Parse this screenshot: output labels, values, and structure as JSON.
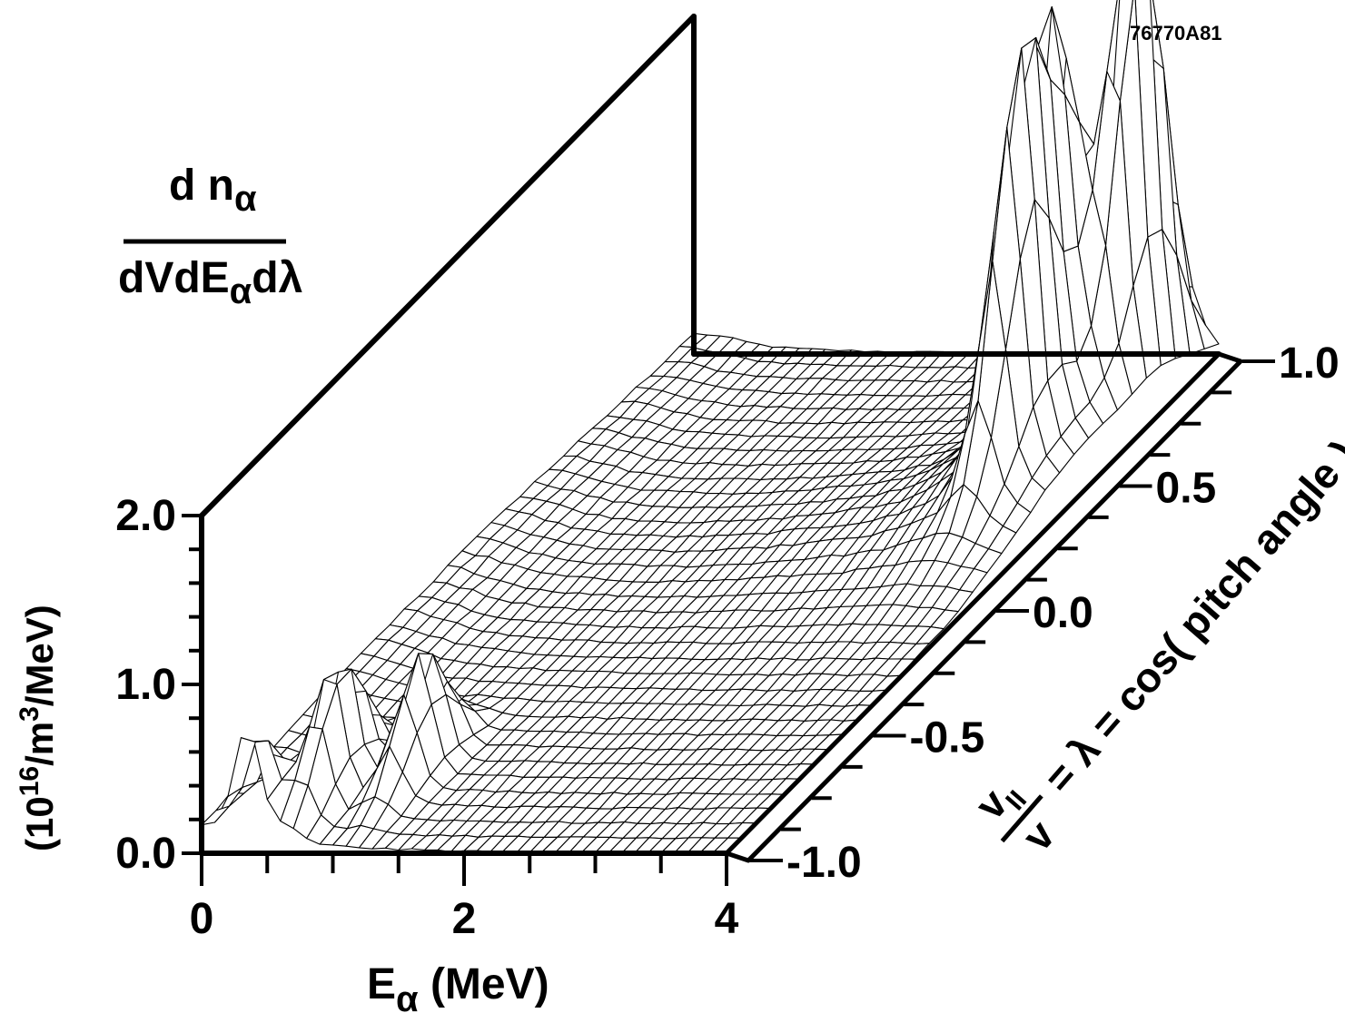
{
  "figure_id": "76770A81",
  "ylabel": {
    "fraction_numerator": "d n",
    "numerator_sub": "α",
    "fraction_denominator_a": "dVdE",
    "denominator_sub": "α",
    "fraction_denominator_b": "dλ",
    "units_a": "(10",
    "units_sup_a": "16",
    "units_b": "/m",
    "units_sup_b": "3",
    "units_c": "/MeV)"
  },
  "xlabel": {
    "main": "E",
    "sub": "α",
    "rest": " (MeV)"
  },
  "depth_label": {
    "v": "v",
    "v_sub": "II",
    "v_den": "v",
    "rest": "= λ = cos( pitch angle )"
  },
  "chart_data": {
    "type": "surface",
    "title": "",
    "z_axis": {
      "ticks": [
        0.0,
        1.0,
        2.0
      ],
      "tick_labels": [
        "0.0",
        "1.0",
        "2.0"
      ],
      "range": [
        0,
        2.0
      ],
      "minor_step": 0.2
    },
    "x_axis": {
      "ticks": [
        0,
        2,
        4
      ],
      "tick_labels": [
        "0",
        "2",
        "4"
      ],
      "range": [
        0,
        4
      ],
      "minor_step": 0.5
    },
    "lambda_axis": {
      "ticks": [
        -1.0,
        -0.5,
        0.0,
        0.5,
        1.0
      ],
      "tick_labels": [
        "-1.0",
        "-0.5",
        "0.0",
        "0.5",
        "1.0"
      ],
      "range": [
        -1.0,
        1.0
      ]
    },
    "peaks": [
      {
        "energy": 0.35,
        "lambda": -1.0,
        "value": 0.62
      },
      {
        "energy": 0.65,
        "lambda": -0.8,
        "value": 0.8
      },
      {
        "energy": 1.1,
        "lambda": -0.7,
        "value": 0.7
      },
      {
        "energy": 3.5,
        "lambda": 0.6,
        "value": 1.9
      },
      {
        "energy": 3.75,
        "lambda": 0.8,
        "value": 2.7
      },
      {
        "energy": 3.6,
        "lambda": 0.4,
        "value": 2.0
      }
    ]
  }
}
